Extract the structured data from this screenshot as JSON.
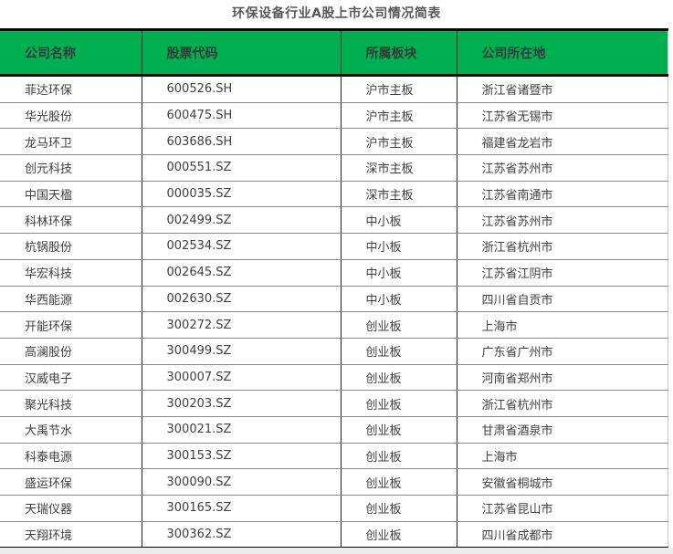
{
  "page_title": "环保设备行业A股上市公司情况简表",
  "colors": {
    "header_bg": "#00B050",
    "header_text": "#383838",
    "body_text": "#404040",
    "thick_border": "#000000",
    "row_divider": "#8a8a8a"
  },
  "table": {
    "headers": [
      "公司名称",
      "股票代码",
      "所属板块",
      "公司所在地"
    ],
    "rows": [
      [
        "菲达环保",
        "600526.SH",
        "沪市主板",
        "浙江省诸暨市"
      ],
      [
        "华光股份",
        "600475.SH",
        "沪市主板",
        "江苏省无锡市"
      ],
      [
        "龙马环卫",
        "603686.SH",
        "沪市主板",
        "福建省龙岩市"
      ],
      [
        "创元科技",
        "000551.SZ",
        "深市主板",
        "江苏省苏州市"
      ],
      [
        "中国天楹",
        "000035.SZ",
        "深市主板",
        "江苏省南通市"
      ],
      [
        "科林环保",
        "002499.SZ",
        "中小板",
        "江苏省苏州市"
      ],
      [
        "杭锅股份",
        "002534.SZ",
        "中小板",
        "浙江省杭州市"
      ],
      [
        "华宏科技",
        "002645.SZ",
        "中小板",
        "江苏省江阴市"
      ],
      [
        "华西能源",
        "002630.SZ",
        "中小板",
        "四川省自贡市"
      ],
      [
        "开能环保",
        "300272.SZ",
        "创业板",
        "上海市"
      ],
      [
        "高澜股份",
        "300499.SZ",
        "创业板",
        "广东省广州市"
      ],
      [
        "汉威电子",
        "300007.SZ",
        "创业板",
        "河南省郑州市"
      ],
      [
        "聚光科技",
        "300203.SZ",
        "创业板",
        "浙江省杭州市"
      ],
      [
        "大禹节水",
        "300021.SZ",
        "创业板",
        "甘肃省酒泉市"
      ],
      [
        "科泰电源",
        "300153.SZ",
        "创业板",
        "上海市"
      ],
      [
        "盛运环保",
        "300090.SZ",
        "创业板",
        "安徽省桐城市"
      ],
      [
        "天瑞仪器",
        "300165.SZ",
        "创业板",
        "江苏省昆山市"
      ],
      [
        "天翔环境",
        "300362.SZ",
        "创业板",
        "四川省成都市"
      ]
    ]
  }
}
